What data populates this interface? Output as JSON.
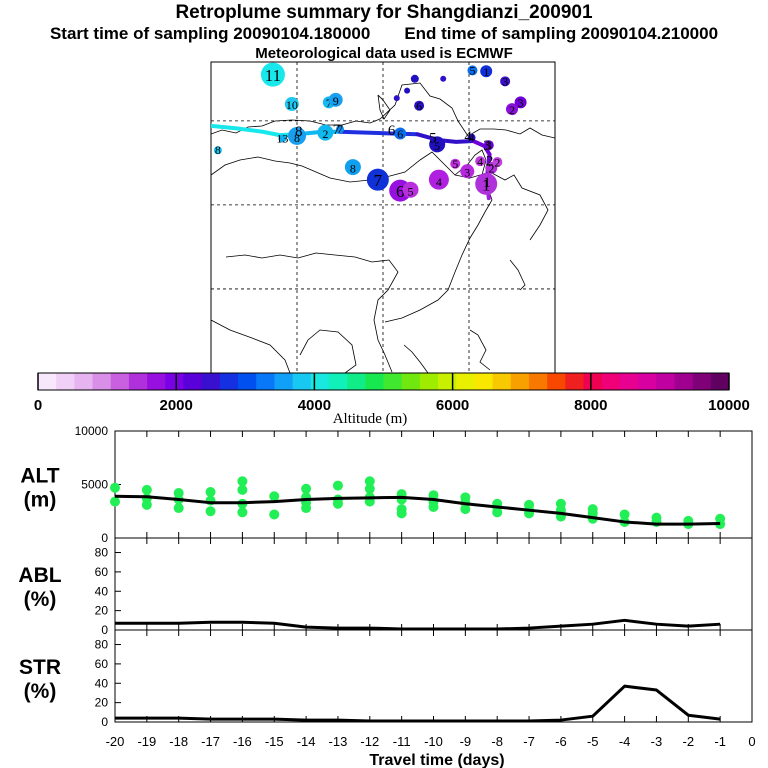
{
  "header": {
    "title": "Retroplume summary for Shangdianzi_200901",
    "start_label": "Start time of sampling 20090104.180000",
    "end_label": "End time of sampling 20090104.210000",
    "met_label": "Meteorological data used is ECMWF"
  },
  "colors": {
    "axis": "#000000",
    "line": "#000000",
    "alt_points": "#22ee55",
    "colorbar": [
      "#f7e8fb",
      "#f0d0f6",
      "#e6b4f0",
      "#d98ee8",
      "#c860e0",
      "#b030dc",
      "#9810e0",
      "#7a00e6",
      "#5a00d8",
      "#3a10d0",
      "#1530e0",
      "#0050f0",
      "#0878f8",
      "#10a0f8",
      "#18c8f0",
      "#18e8e0",
      "#10f0b8",
      "#10ec88",
      "#18e850",
      "#40e830",
      "#70e810",
      "#a0ec00",
      "#c8f000",
      "#e8f000",
      "#f8e800",
      "#f8c800",
      "#f8a000",
      "#f87800",
      "#f84800",
      "#f02020",
      "#f00050",
      "#f00078",
      "#e80090",
      "#d800a0",
      "#c000a0",
      "#a00090",
      "#800078",
      "#600060"
    ]
  },
  "map": {
    "cluster_points": [
      {
        "label": "11",
        "lon": 92.2,
        "lat": 55.5,
        "r": 12,
        "color": "#18e8ec"
      },
      {
        "label": "10",
        "lon": 94.4,
        "lat": 52.0,
        "r": 7,
        "color": "#20c8f0"
      },
      {
        "label": "7",
        "lon": 98.7,
        "lat": 52.2,
        "r": 6,
        "color": "#18b8f0"
      },
      {
        "label": "9",
        "lon": 99.5,
        "lat": 52.5,
        "r": 7,
        "color": "#1aa0f2"
      },
      {
        "label": "8",
        "lon": 85.8,
        "lat": 46.5,
        "r": 4,
        "color": "#10c8f0"
      },
      {
        "label": "13",
        "lon": 93.3,
        "lat": 47.9,
        "r": 4,
        "color": "#10b0f0"
      },
      {
        "label": "8",
        "lon": 95.0,
        "lat": 48.2,
        "r": 9,
        "color": "#18a0f0"
      },
      {
        "label": "2",
        "lon": 98.3,
        "lat": 48.6,
        "r": 8,
        "color": "#10b8f0"
      },
      {
        "label": "7",
        "lon": 100.0,
        "lat": 49.0,
        "r": 4,
        "color": "#1090f0"
      },
      {
        "label": "6",
        "lon": 107.0,
        "lat": 48.5,
        "r": 6,
        "color": "#0a70ee"
      },
      {
        "label": "5",
        "lon": 111.3,
        "lat": 47.2,
        "r": 8,
        "color": "#2010c0"
      },
      {
        "label": "4",
        "lon": 115.3,
        "lat": 48.0,
        "r": 4,
        "color": "#3010d0"
      },
      {
        "label": "3",
        "lon": 117.3,
        "lat": 47.1,
        "r": 5,
        "color": "#6a00d8"
      },
      {
        "label": "8",
        "lon": 101.5,
        "lat": 44.5,
        "r": 8,
        "color": "#10a0f0"
      },
      {
        "label": "7",
        "lon": 104.4,
        "lat": 43.0,
        "r": 11,
        "color": "#1030d8"
      },
      {
        "label": "6",
        "lon": 107.0,
        "lat": 41.7,
        "r": 11,
        "color": "#9810e0"
      },
      {
        "label": "5",
        "lon": 108.2,
        "lat": 41.8,
        "r": 8,
        "color": "#b830dc"
      },
      {
        "label": "4",
        "lon": 111.5,
        "lat": 43.0,
        "r": 10,
        "color": "#b020e0"
      },
      {
        "label": "5",
        "lon": 113.4,
        "lat": 44.9,
        "r": 5,
        "color": "#c030e0"
      },
      {
        "label": "3",
        "lon": 114.8,
        "lat": 44.0,
        "r": 7,
        "color": "#b828e0"
      },
      {
        "label": "4",
        "lon": 116.3,
        "lat": 45.2,
        "r": 5,
        "color": "#c038e0"
      },
      {
        "label": "2",
        "lon": 117.6,
        "lat": 44.4,
        "r": 6,
        "color": "#b030dc"
      },
      {
        "label": "2",
        "lon": 118.3,
        "lat": 45.1,
        "r": 5,
        "color": "#c040e0"
      },
      {
        "label": "1",
        "lon": 117.0,
        "lat": 42.5,
        "r": 11,
        "color": "#b030dc"
      },
      {
        "label": "",
        "lon": 107.8,
        "lat": 53.6,
        "r": 3,
        "color": "#2010c0"
      },
      {
        "label": "",
        "lon": 108.7,
        "lat": 55.0,
        "r": 4,
        "color": "#2010c0"
      },
      {
        "label": "",
        "lon": 106.6,
        "lat": 52.7,
        "r": 3,
        "color": "#3010c8"
      },
      {
        "label": "",
        "lon": 112.0,
        "lat": 55.0,
        "r": 3,
        "color": "#3010c8"
      },
      {
        "label": "6",
        "lon": 109.2,
        "lat": 51.8,
        "r": 5,
        "color": "#2a10c8"
      },
      {
        "label": "5",
        "lon": 115.4,
        "lat": 56.0,
        "r": 5,
        "color": "#0a70ee"
      },
      {
        "label": "1",
        "lon": 117.0,
        "lat": 55.9,
        "r": 6,
        "color": "#1030d8"
      },
      {
        "label": "3",
        "lon": 119.2,
        "lat": 54.7,
        "r": 5,
        "color": "#3a10c8"
      },
      {
        "label": "3",
        "lon": 121.0,
        "lat": 52.2,
        "r": 6,
        "color": "#7000d8"
      },
      {
        "label": "2",
        "lon": 120.0,
        "lat": 51.4,
        "r": 6,
        "color": "#8a10d8"
      }
    ],
    "track_segments": [
      {
        "color": "#18e8ec",
        "points": [
          [
            85.0,
            49.4
          ],
          [
            88.0,
            49.1
          ],
          [
            91.0,
            48.7
          ],
          [
            93.0,
            48.3
          ],
          [
            95.0,
            48.4
          ]
        ]
      },
      {
        "color": "#10b8f0",
        "points": [
          [
            95.0,
            48.4
          ],
          [
            98.0,
            48.7
          ],
          [
            100.0,
            48.7
          ]
        ]
      },
      {
        "color": "#2030e0",
        "points": [
          [
            100.0,
            48.7
          ],
          [
            103.0,
            48.6
          ],
          [
            106.0,
            48.5
          ],
          [
            109.0,
            48.4
          ]
        ]
      },
      {
        "color": "#3010c8",
        "points": [
          [
            109.0,
            48.4
          ],
          [
            111.5,
            47.7
          ],
          [
            113.5,
            47.5
          ],
          [
            115.5,
            47.6
          ]
        ]
      },
      {
        "color": "#7000d8",
        "points": [
          [
            115.5,
            47.6
          ],
          [
            116.8,
            47.0
          ],
          [
            117.4,
            46.0
          ],
          [
            117.2,
            44.5
          ],
          [
            117.1,
            43.0
          ]
        ]
      },
      {
        "color": "#a020e0",
        "points": [
          [
            117.1,
            43.0
          ],
          [
            117.2,
            41.8
          ],
          [
            117.3,
            40.8
          ]
        ]
      }
    ],
    "track_labels": [
      {
        "text": "8",
        "lon": 95.2,
        "lat": 48.8
      },
      {
        "text": "7",
        "lon": 99.6,
        "lat": 49.0
      },
      {
        "text": "6",
        "lon": 106.0,
        "lat": 48.9
      },
      {
        "text": "5",
        "lon": 110.8,
        "lat": 48.0
      },
      {
        "text": "4",
        "lon": 114.9,
        "lat": 48.2
      },
      {
        "text": "3",
        "lon": 117.1,
        "lat": 47.1
      },
      {
        "text": "2",
        "lon": 117.4,
        "lat": 45.3
      },
      {
        "text": "1",
        "lon": 117.1,
        "lat": 42.7
      }
    ]
  },
  "colorbar": {
    "ticks": [
      "0",
      "2000",
      "4000",
      "6000",
      "8000",
      "10000"
    ],
    "label": "Altitude (m)"
  },
  "chart_data": [
    {
      "type": "scatter+line",
      "title": "ALT",
      "ylabel": "ALT (m)",
      "ylabel_line1": "ALT",
      "ylabel_line2": "(m)",
      "xlim": [
        -20,
        0
      ],
      "ylim": [
        0,
        10000
      ],
      "yticks": [
        "0",
        "5000",
        "10000"
      ],
      "line": {
        "x": [
          -20,
          -19,
          -18,
          -17,
          -16,
          -15,
          -14,
          -13,
          -12,
          -11,
          -10,
          -9,
          -8,
          -7,
          -6,
          -5,
          -4,
          -3,
          -2,
          -1
        ],
        "y": [
          3900,
          3850,
          3600,
          3300,
          3300,
          3400,
          3600,
          3700,
          3750,
          3800,
          3600,
          3200,
          2900,
          2600,
          2300,
          1900,
          1500,
          1300,
          1300,
          1350
        ]
      },
      "points": [
        {
          "x": -20,
          "y": 4700
        },
        {
          "x": -20,
          "y": 3400
        },
        {
          "x": -19,
          "y": 4500
        },
        {
          "x": -19,
          "y": 3700
        },
        {
          "x": -19,
          "y": 3100
        },
        {
          "x": -18,
          "y": 4200
        },
        {
          "x": -18,
          "y": 3600
        },
        {
          "x": -18,
          "y": 2800
        },
        {
          "x": -17,
          "y": 4300
        },
        {
          "x": -17,
          "y": 3500
        },
        {
          "x": -17,
          "y": 2500
        },
        {
          "x": -16,
          "y": 4500
        },
        {
          "x": -16,
          "y": 3200
        },
        {
          "x": -16,
          "y": 2400
        },
        {
          "x": -16,
          "y": 5300
        },
        {
          "x": -15,
          "y": 3900
        },
        {
          "x": -15,
          "y": 2200
        },
        {
          "x": -14,
          "y": 4600
        },
        {
          "x": -14,
          "y": 3800
        },
        {
          "x": -14,
          "y": 3300
        },
        {
          "x": -14,
          "y": 2800
        },
        {
          "x": -13,
          "y": 4900
        },
        {
          "x": -13,
          "y": 3600
        },
        {
          "x": -13,
          "y": 3200
        },
        {
          "x": -12,
          "y": 4600
        },
        {
          "x": -12,
          "y": 3800
        },
        {
          "x": -12,
          "y": 3400
        },
        {
          "x": -12,
          "y": 5300
        },
        {
          "x": -11,
          "y": 4100
        },
        {
          "x": -11,
          "y": 3600
        },
        {
          "x": -11,
          "y": 2700
        },
        {
          "x": -11,
          "y": 2300
        },
        {
          "x": -10,
          "y": 4000
        },
        {
          "x": -10,
          "y": 3400
        },
        {
          "x": -10,
          "y": 2900
        },
        {
          "x": -9,
          "y": 3800
        },
        {
          "x": -9,
          "y": 3300
        },
        {
          "x": -9,
          "y": 2700
        },
        {
          "x": -8,
          "y": 3200
        },
        {
          "x": -8,
          "y": 2900
        },
        {
          "x": -8,
          "y": 2400
        },
        {
          "x": -7,
          "y": 3100
        },
        {
          "x": -7,
          "y": 2600
        },
        {
          "x": -7,
          "y": 2300
        },
        {
          "x": -6,
          "y": 3200
        },
        {
          "x": -6,
          "y": 2600
        },
        {
          "x": -6,
          "y": 2000
        },
        {
          "x": -5,
          "y": 2300
        },
        {
          "x": -5,
          "y": 1800
        },
        {
          "x": -5,
          "y": 2700
        },
        {
          "x": -4,
          "y": 2200
        },
        {
          "x": -4,
          "y": 1500
        },
        {
          "x": -3,
          "y": 1900
        },
        {
          "x": -3,
          "y": 1500
        },
        {
          "x": -2,
          "y": 1600
        },
        {
          "x": -2,
          "y": 1300
        },
        {
          "x": -1,
          "y": 1800
        },
        {
          "x": -1,
          "y": 1300
        }
      ]
    },
    {
      "type": "line",
      "title": "ABL",
      "ylabel": "ABL (%)",
      "ylabel_line1": "ABL",
      "ylabel_line2": "(%)",
      "xlim": [
        -20,
        0
      ],
      "ylim": [
        0,
        95
      ],
      "yticks": [
        "0",
        "20",
        "40",
        "60",
        "80"
      ],
      "x": [
        -20,
        -19,
        -18,
        -17,
        -16,
        -15,
        -14,
        -13,
        -12,
        -11,
        -10,
        -9,
        -8,
        -7,
        -6,
        -5,
        -4,
        -3,
        -2,
        -1
      ],
      "y": [
        7,
        7,
        7,
        8,
        8,
        7,
        3,
        2,
        2,
        1,
        1,
        1,
        1,
        2,
        4,
        6,
        10,
        6,
        4,
        6
      ]
    },
    {
      "type": "line",
      "title": "STR",
      "ylabel": "STR (%)",
      "ylabel_line1": "STR",
      "ylabel_line2": "(%)",
      "xlim": [
        -20,
        0
      ],
      "ylim": [
        0,
        95
      ],
      "yticks": [
        "0",
        "20",
        "40",
        "60",
        "80"
      ],
      "x": [
        -20,
        -19,
        -18,
        -17,
        -16,
        -15,
        -14,
        -13,
        -12,
        -11,
        -10,
        -9,
        -8,
        -7,
        -6,
        -5,
        -4,
        -3,
        -2,
        -1
      ],
      "y": [
        4,
        4,
        4,
        3,
        3,
        3,
        2,
        2,
        1,
        1,
        1,
        1,
        1,
        1,
        2,
        6,
        37,
        33,
        7,
        3
      ]
    }
  ],
  "xaxis": {
    "ticks": [
      "-20",
      "-19",
      "-18",
      "-17",
      "-16",
      "-15",
      "-14",
      "-13",
      "-12",
      "-11",
      "-10",
      "-9",
      "-8",
      "-7",
      "-6",
      "-5",
      "-4",
      "-3",
      "-2",
      "-1",
      "0"
    ],
    "label": "Travel time (days)"
  }
}
